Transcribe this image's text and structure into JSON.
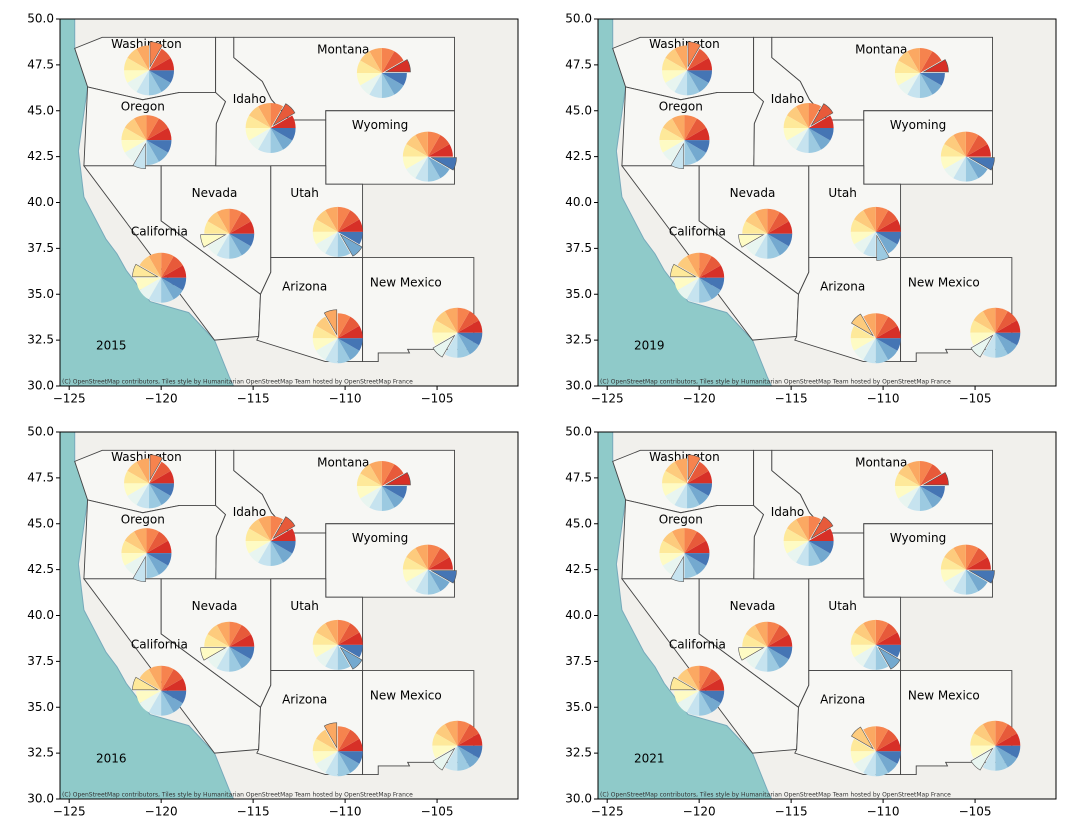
{
  "map": {
    "xlim": [
      -125.5,
      -100.6
    ],
    "ylim": [
      30,
      50
    ],
    "xticks": [
      {
        "value": -125,
        "label": "−125"
      },
      {
        "value": -120,
        "label": "−120"
      },
      {
        "value": -115,
        "label": "−115"
      },
      {
        "value": -110,
        "label": "−110"
      },
      {
        "value": -105,
        "label": "−105"
      }
    ],
    "yticks": [
      {
        "value": 30,
        "label": "30.0"
      },
      {
        "value": 32.5,
        "label": "32.5"
      },
      {
        "value": 35,
        "label": "35.0"
      },
      {
        "value": 37.5,
        "label": "37.5"
      },
      {
        "value": 40,
        "label": "40.0"
      },
      {
        "value": 42.5,
        "label": "42.5"
      },
      {
        "value": 45,
        "label": "45.0"
      },
      {
        "value": 47.5,
        "label": "47.5"
      },
      {
        "value": 50,
        "label": "50.0"
      }
    ],
    "attribution": "(C) OpenStreetMap contributors, Tiles style by Humanitarian OpenStreetMap Team hosted by OpenStreetMap France",
    "slice_values": [
      1,
      1,
      1,
      1,
      1,
      1,
      1,
      1,
      1,
      1,
      1,
      1
    ],
    "slice_colors": [
      "#d73027",
      "#e75a3a",
      "#f6834e",
      "#fba862",
      "#fdcb7d",
      "#fee99a",
      "#fefbc4",
      "#e8f5f0",
      "#c6e3ef",
      "#9ccae1",
      "#74a9cf",
      "#4575b4"
    ],
    "states": [
      "Washington",
      "Montana",
      "Idaho",
      "Oregon",
      "Wyoming",
      "Nevada",
      "Utah",
      "California",
      "Arizona",
      "New Mexico"
    ],
    "panels": [
      {
        "year": "2015",
        "explode": [
          2,
          0,
          1,
          8,
          11,
          6,
          10,
          5,
          3,
          7
        ]
      },
      {
        "year": "2019",
        "explode": [
          2,
          0,
          1,
          8,
          11,
          6,
          9,
          5,
          4,
          7
        ]
      },
      {
        "year": "2016",
        "explode": [
          2,
          0,
          1,
          8,
          11,
          6,
          10,
          5,
          3,
          7
        ]
      },
      {
        "year": "2021",
        "explode": [
          2,
          0,
          1,
          8,
          11,
          6,
          10,
          5,
          4,
          7
        ]
      }
    ]
  }
}
